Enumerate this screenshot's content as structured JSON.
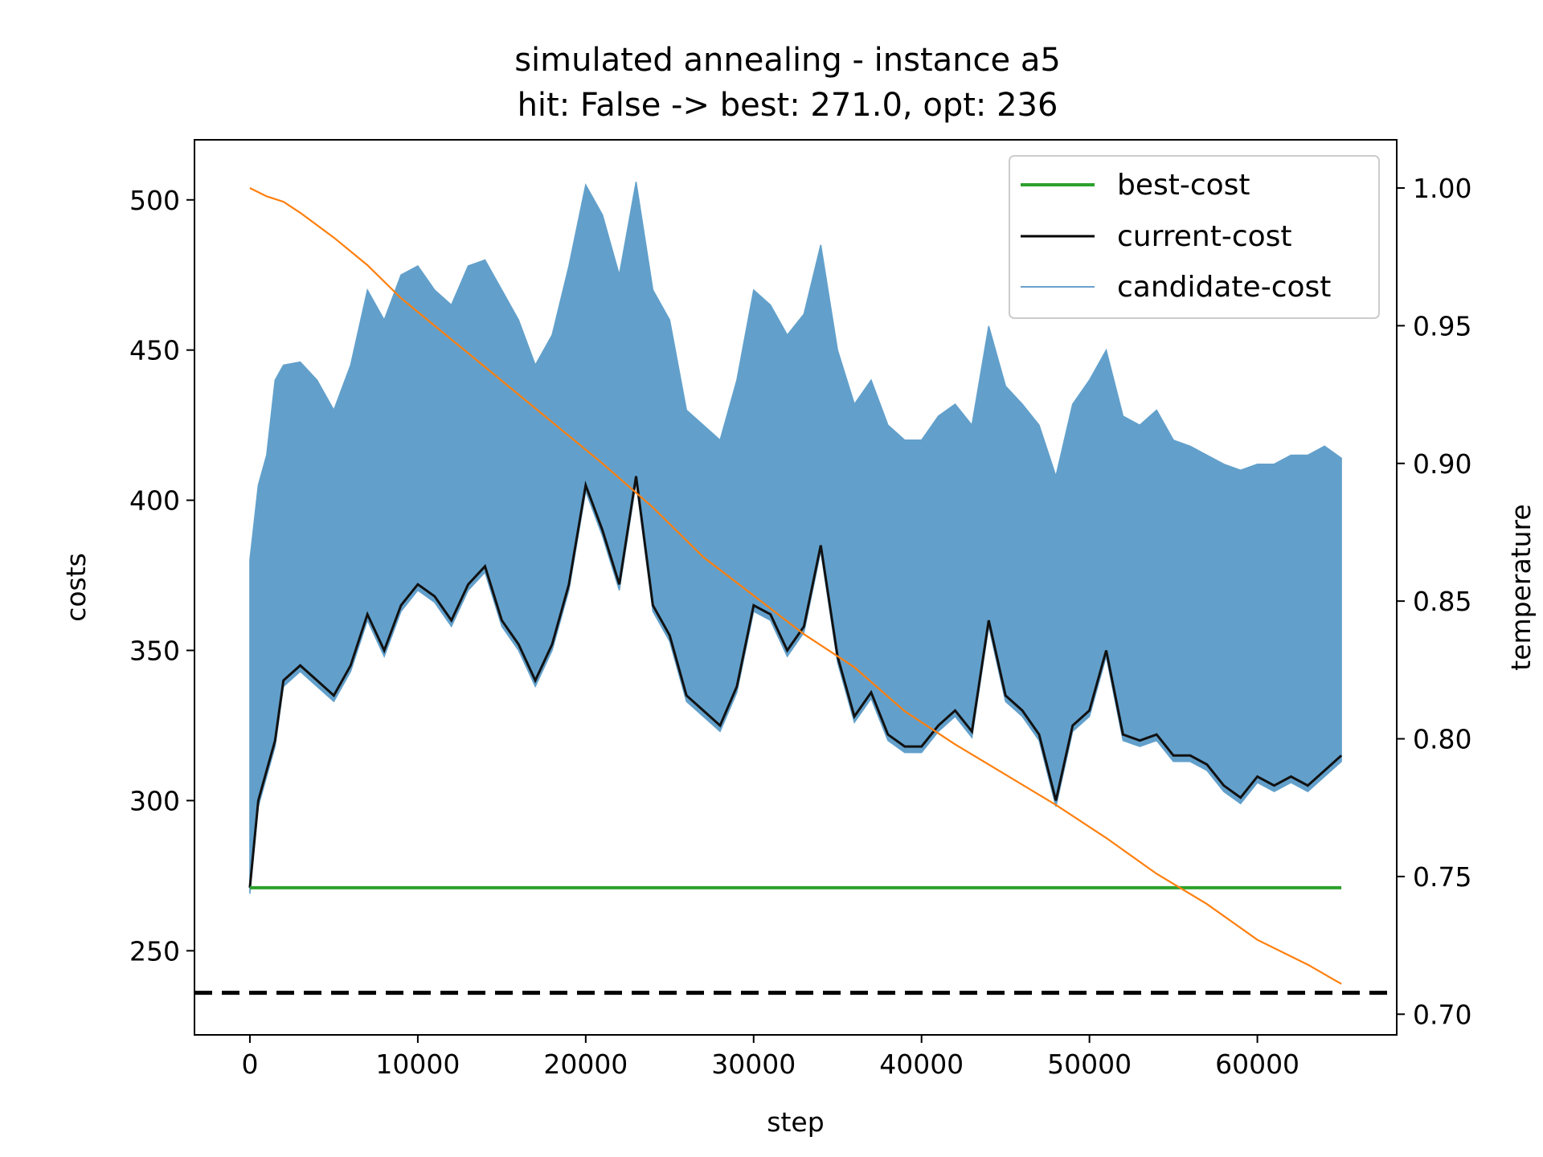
{
  "chart_data": {
    "type": "line",
    "title": "simulated annealing - instance a5",
    "subtitle": "hit: False -> best: 271.0, opt: 236",
    "xlabel": "step",
    "ylabel": "costs",
    "y2label": "temperature",
    "xlim": [
      -3300,
      68300
    ],
    "ylim": [
      222,
      520
    ],
    "y2lim": [
      0.6925,
      1.0175
    ],
    "xticks": [
      0,
      10000,
      20000,
      30000,
      40000,
      50000,
      60000
    ],
    "yticks": [
      250,
      300,
      350,
      400,
      450,
      500
    ],
    "y2ticks": [
      0.7,
      0.75,
      0.8,
      0.85,
      0.9,
      0.95,
      1.0
    ],
    "y2ticklabels": [
      "0.70",
      "0.75",
      "0.80",
      "0.85",
      "0.90",
      "0.95",
      "1.00"
    ],
    "grid": false,
    "legend_position": "upper-right",
    "legend": [
      {
        "label": "best-cost",
        "color": "#2ca02c"
      },
      {
        "label": "current-cost",
        "color": "#000000"
      },
      {
        "label": "candidate-cost",
        "color": "#6aa0cc"
      }
    ],
    "colors": {
      "best": "#2ca02c",
      "current": "#111111",
      "candidate": "#62a0cb",
      "temperature": "#ff7f0e",
      "optimum": "#000000"
    },
    "series": [
      {
        "name": "best-cost",
        "x": [
          0,
          65000
        ],
        "y": [
          271,
          271
        ]
      },
      {
        "name": "current-cost",
        "x": [
          0,
          500,
          1000,
          1500,
          2000,
          3000,
          4000,
          5000,
          6000,
          7000,
          8000,
          9000,
          10000,
          11000,
          12000,
          13000,
          14000,
          15000,
          16000,
          17000,
          18000,
          19000,
          20000,
          21000,
          22000,
          23000,
          24000,
          25000,
          26000,
          27000,
          28000,
          29000,
          30000,
          31000,
          32000,
          33000,
          34000,
          35000,
          36000,
          37000,
          38000,
          39000,
          40000,
          41000,
          42000,
          43000,
          44000,
          45000,
          46000,
          47000,
          48000,
          49000,
          50000,
          51000,
          52000,
          53000,
          54000,
          55000,
          56000,
          57000,
          58000,
          59000,
          60000,
          61000,
          62000,
          63000,
          64000,
          65000
        ],
        "y": [
          271,
          300,
          310,
          320,
          340,
          345,
          340,
          335,
          345,
          362,
          350,
          365,
          372,
          368,
          360,
          372,
          378,
          360,
          352,
          340,
          352,
          372,
          405,
          390,
          372,
          408,
          365,
          355,
          335,
          330,
          325,
          338,
          365,
          362,
          350,
          358,
          385,
          348,
          328,
          336,
          322,
          318,
          318,
          325,
          330,
          323,
          360,
          335,
          330,
          322,
          300,
          325,
          330,
          350,
          322,
          320,
          322,
          315,
          315,
          312,
          305,
          301,
          308,
          305,
          308,
          305,
          310,
          315
        ]
      },
      {
        "name": "candidate-cost",
        "x": [
          0,
          500,
          1000,
          1500,
          2000,
          3000,
          4000,
          5000,
          6000,
          7000,
          8000,
          9000,
          10000,
          11000,
          12000,
          13000,
          14000,
          15000,
          16000,
          17000,
          18000,
          19000,
          20000,
          21000,
          22000,
          23000,
          24000,
          25000,
          26000,
          27000,
          28000,
          29000,
          30000,
          31000,
          32000,
          33000,
          34000,
          35000,
          36000,
          37000,
          38000,
          39000,
          40000,
          41000,
          42000,
          43000,
          44000,
          45000,
          46000,
          47000,
          48000,
          49000,
          50000,
          51000,
          52000,
          53000,
          54000,
          55000,
          56000,
          57000,
          58000,
          59000,
          60000,
          61000,
          62000,
          63000,
          64000,
          65000
        ],
        "y": [
          380,
          405,
          415,
          440,
          445,
          446,
          440,
          430,
          445,
          470,
          460,
          475,
          478,
          470,
          465,
          478,
          480,
          470,
          460,
          445,
          455,
          478,
          505,
          495,
          475,
          506,
          470,
          460,
          430,
          425,
          420,
          440,
          470,
          465,
          455,
          462,
          485,
          450,
          432,
          440,
          425,
          420,
          420,
          428,
          432,
          425,
          458,
          438,
          432,
          425,
          408,
          432,
          440,
          450,
          428,
          425,
          430,
          420,
          418,
          415,
          412,
          410,
          412,
          412,
          415,
          415,
          418,
          414
        ]
      },
      {
        "name": "temperature",
        "axis": "right",
        "x": [
          0,
          1000,
          2000,
          3000,
          5000,
          7000,
          9000,
          12000,
          15000,
          18000,
          21000,
          24000,
          27000,
          30000,
          33000,
          36000,
          39000,
          42000,
          45000,
          48000,
          51000,
          54000,
          57000,
          60000,
          63000,
          65000
        ],
        "y": [
          1.0,
          0.997,
          0.995,
          0.991,
          0.982,
          0.972,
          0.96,
          0.945,
          0.93,
          0.915,
          0.9,
          0.884,
          0.866,
          0.852,
          0.838,
          0.826,
          0.81,
          0.798,
          0.787,
          0.776,
          0.764,
          0.751,
          0.74,
          0.727,
          0.718,
          0.711
        ]
      }
    ],
    "reference_lines": [
      {
        "name": "opt",
        "y": 236,
        "style": "dashed"
      }
    ]
  }
}
